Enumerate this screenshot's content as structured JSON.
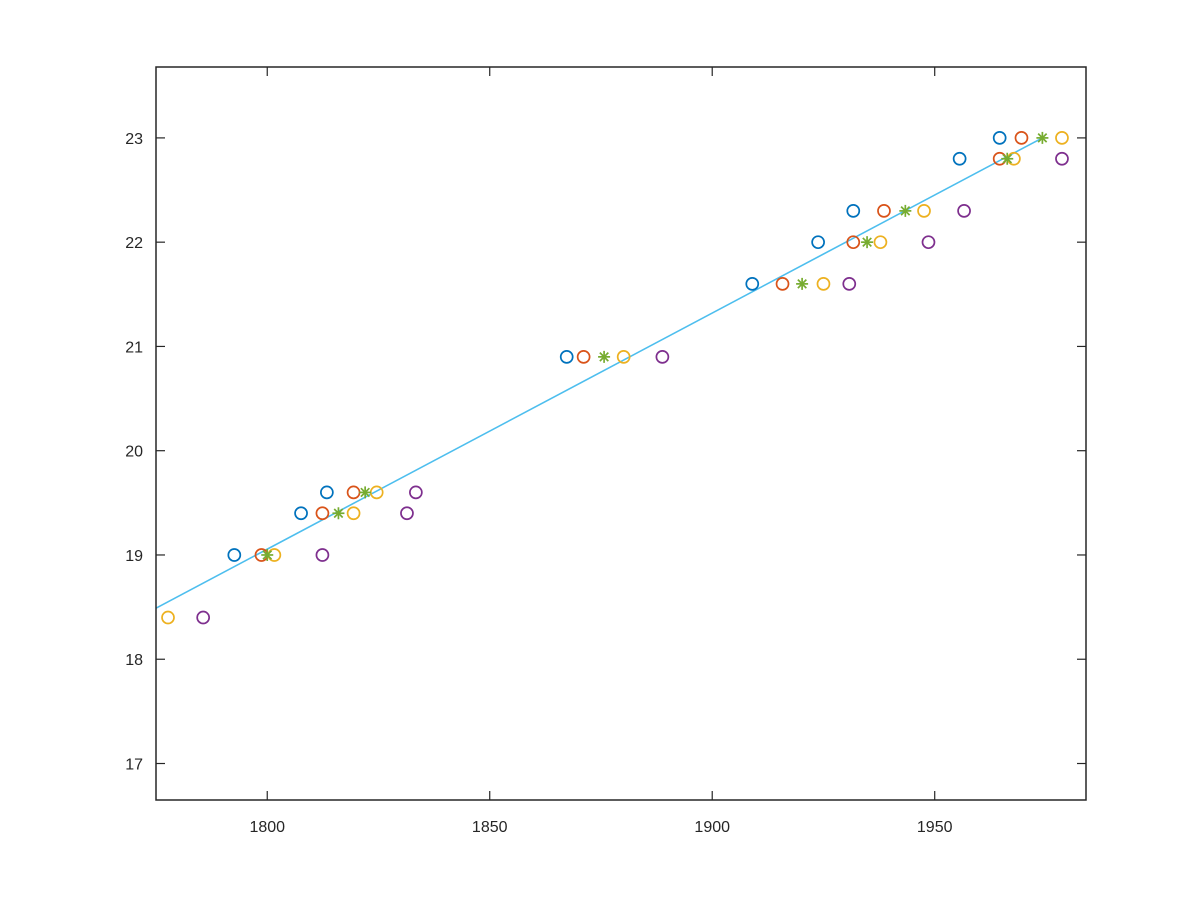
{
  "chart_data": {
    "type": "scatter",
    "xlim": [
      1775,
      1984
    ],
    "ylim": [
      16.65,
      23.68
    ],
    "xticks": [
      1800,
      1850,
      1900,
      1950
    ],
    "yticks": [
      17,
      18,
      19,
      20,
      21,
      22,
      23
    ],
    "grid": false,
    "box": true,
    "series": [
      {
        "color": "#0072BD",
        "marker": "circle",
        "x": [
          1792.6,
          1807.6,
          1813.4,
          1867.3,
          1909.0,
          1923.8,
          1931.7,
          1955.6,
          1964.6
        ],
        "y": [
          19.0,
          19.4,
          19.6,
          20.9,
          21.6,
          22.0,
          22.3,
          22.8,
          23.0
        ]
      },
      {
        "color": "#D95319",
        "marker": "circle",
        "x": [
          1798.7,
          1812.4,
          1819.4,
          1871.1,
          1915.8,
          1931.7,
          1938.6,
          1964.6,
          1969.5
        ],
        "y": [
          19.0,
          19.4,
          19.6,
          20.9,
          21.6,
          22.0,
          22.3,
          22.8,
          23.0
        ]
      },
      {
        "color": "#EDB120",
        "marker": "circle",
        "x": [
          1777.7,
          1801.6,
          1819.4,
          1824.6,
          1880.1,
          1925.0,
          1937.8,
          1947.6,
          1967.8,
          1978.6
        ],
        "y": [
          18.4,
          19.0,
          19.4,
          19.6,
          20.9,
          21.6,
          22.0,
          22.3,
          22.8,
          23.0
        ]
      },
      {
        "color": "#7E2F8E",
        "marker": "circle",
        "x": [
          1785.6,
          1812.4,
          1831.4,
          1833.4,
          1888.8,
          1930.8,
          1948.6,
          1956.6,
          1978.6
        ],
        "y": [
          18.4,
          19.0,
          19.4,
          19.6,
          20.9,
          21.6,
          22.0,
          22.3,
          22.8
        ]
      },
      {
        "color": "#77AC30",
        "marker": "asterisk",
        "x": [
          1800.0,
          1816.0,
          1822.0,
          1875.7,
          1920.2,
          1934.8,
          1943.4,
          1966.3,
          1974.2
        ],
        "y": [
          19.0,
          19.4,
          19.6,
          20.9,
          21.6,
          22.0,
          22.3,
          22.8,
          23.0
        ]
      }
    ],
    "lines": [
      {
        "color": "#4DBEEE",
        "x": [
          1775,
          1974.2
        ],
        "y": [
          18.49,
          23.0
        ]
      }
    ]
  }
}
